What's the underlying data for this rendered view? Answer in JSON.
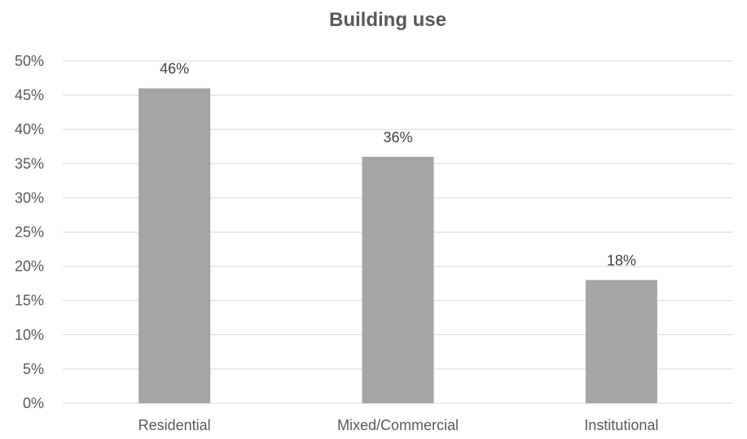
{
  "chart_data": {
    "type": "bar",
    "title": "Building use",
    "categories": [
      "Residential",
      "Mixed/Commercial",
      "Institutional"
    ],
    "values": [
      46,
      36,
      18
    ],
    "data_labels": [
      "46%",
      "36%",
      "18%"
    ],
    "y_ticks": [
      "0%",
      "5%",
      "10%",
      "15%",
      "20%",
      "25%",
      "30%",
      "35%",
      "40%",
      "45%",
      "50%"
    ],
    "ylim": [
      0,
      50
    ],
    "y_step": 5,
    "xlabel": "",
    "ylabel": "",
    "grid": true,
    "legend": "none",
    "colors": {
      "bar": "#a5a5a5",
      "grid": "#d9d9d9",
      "text": "#595959"
    }
  }
}
